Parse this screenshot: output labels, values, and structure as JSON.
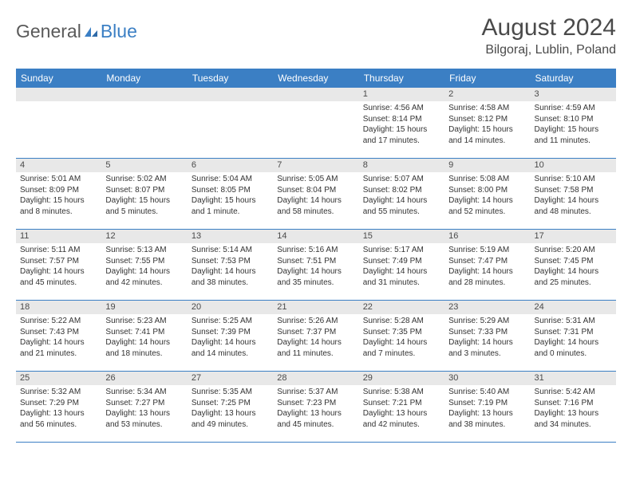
{
  "brand": {
    "word1": "General",
    "word2": "Blue",
    "logo_color": "#3b7fc4"
  },
  "title": "August 2024",
  "location": "Bilgoraj, Lublin, Poland",
  "colors": {
    "header_bg": "#3b7fc4",
    "header_text": "#ffffff",
    "daynum_bg": "#e8e8e8",
    "row_border": "#3b7fc4",
    "text": "#333333"
  },
  "weekdays": [
    "Sunday",
    "Monday",
    "Tuesday",
    "Wednesday",
    "Thursday",
    "Friday",
    "Saturday"
  ],
  "weeks": [
    [
      {
        "n": "",
        "sunrise": "",
        "sunset": "",
        "day": ""
      },
      {
        "n": "",
        "sunrise": "",
        "sunset": "",
        "day": ""
      },
      {
        "n": "",
        "sunrise": "",
        "sunset": "",
        "day": ""
      },
      {
        "n": "",
        "sunrise": "",
        "sunset": "",
        "day": ""
      },
      {
        "n": "1",
        "sunrise": "Sunrise: 4:56 AM",
        "sunset": "Sunset: 8:14 PM",
        "day": "Daylight: 15 hours and 17 minutes."
      },
      {
        "n": "2",
        "sunrise": "Sunrise: 4:58 AM",
        "sunset": "Sunset: 8:12 PM",
        "day": "Daylight: 15 hours and 14 minutes."
      },
      {
        "n": "3",
        "sunrise": "Sunrise: 4:59 AM",
        "sunset": "Sunset: 8:10 PM",
        "day": "Daylight: 15 hours and 11 minutes."
      }
    ],
    [
      {
        "n": "4",
        "sunrise": "Sunrise: 5:01 AM",
        "sunset": "Sunset: 8:09 PM",
        "day": "Daylight: 15 hours and 8 minutes."
      },
      {
        "n": "5",
        "sunrise": "Sunrise: 5:02 AM",
        "sunset": "Sunset: 8:07 PM",
        "day": "Daylight: 15 hours and 5 minutes."
      },
      {
        "n": "6",
        "sunrise": "Sunrise: 5:04 AM",
        "sunset": "Sunset: 8:05 PM",
        "day": "Daylight: 15 hours and 1 minute."
      },
      {
        "n": "7",
        "sunrise": "Sunrise: 5:05 AM",
        "sunset": "Sunset: 8:04 PM",
        "day": "Daylight: 14 hours and 58 minutes."
      },
      {
        "n": "8",
        "sunrise": "Sunrise: 5:07 AM",
        "sunset": "Sunset: 8:02 PM",
        "day": "Daylight: 14 hours and 55 minutes."
      },
      {
        "n": "9",
        "sunrise": "Sunrise: 5:08 AM",
        "sunset": "Sunset: 8:00 PM",
        "day": "Daylight: 14 hours and 52 minutes."
      },
      {
        "n": "10",
        "sunrise": "Sunrise: 5:10 AM",
        "sunset": "Sunset: 7:58 PM",
        "day": "Daylight: 14 hours and 48 minutes."
      }
    ],
    [
      {
        "n": "11",
        "sunrise": "Sunrise: 5:11 AM",
        "sunset": "Sunset: 7:57 PM",
        "day": "Daylight: 14 hours and 45 minutes."
      },
      {
        "n": "12",
        "sunrise": "Sunrise: 5:13 AM",
        "sunset": "Sunset: 7:55 PM",
        "day": "Daylight: 14 hours and 42 minutes."
      },
      {
        "n": "13",
        "sunrise": "Sunrise: 5:14 AM",
        "sunset": "Sunset: 7:53 PM",
        "day": "Daylight: 14 hours and 38 minutes."
      },
      {
        "n": "14",
        "sunrise": "Sunrise: 5:16 AM",
        "sunset": "Sunset: 7:51 PM",
        "day": "Daylight: 14 hours and 35 minutes."
      },
      {
        "n": "15",
        "sunrise": "Sunrise: 5:17 AM",
        "sunset": "Sunset: 7:49 PM",
        "day": "Daylight: 14 hours and 31 minutes."
      },
      {
        "n": "16",
        "sunrise": "Sunrise: 5:19 AM",
        "sunset": "Sunset: 7:47 PM",
        "day": "Daylight: 14 hours and 28 minutes."
      },
      {
        "n": "17",
        "sunrise": "Sunrise: 5:20 AM",
        "sunset": "Sunset: 7:45 PM",
        "day": "Daylight: 14 hours and 25 minutes."
      }
    ],
    [
      {
        "n": "18",
        "sunrise": "Sunrise: 5:22 AM",
        "sunset": "Sunset: 7:43 PM",
        "day": "Daylight: 14 hours and 21 minutes."
      },
      {
        "n": "19",
        "sunrise": "Sunrise: 5:23 AM",
        "sunset": "Sunset: 7:41 PM",
        "day": "Daylight: 14 hours and 18 minutes."
      },
      {
        "n": "20",
        "sunrise": "Sunrise: 5:25 AM",
        "sunset": "Sunset: 7:39 PM",
        "day": "Daylight: 14 hours and 14 minutes."
      },
      {
        "n": "21",
        "sunrise": "Sunrise: 5:26 AM",
        "sunset": "Sunset: 7:37 PM",
        "day": "Daylight: 14 hours and 11 minutes."
      },
      {
        "n": "22",
        "sunrise": "Sunrise: 5:28 AM",
        "sunset": "Sunset: 7:35 PM",
        "day": "Daylight: 14 hours and 7 minutes."
      },
      {
        "n": "23",
        "sunrise": "Sunrise: 5:29 AM",
        "sunset": "Sunset: 7:33 PM",
        "day": "Daylight: 14 hours and 3 minutes."
      },
      {
        "n": "24",
        "sunrise": "Sunrise: 5:31 AM",
        "sunset": "Sunset: 7:31 PM",
        "day": "Daylight: 14 hours and 0 minutes."
      }
    ],
    [
      {
        "n": "25",
        "sunrise": "Sunrise: 5:32 AM",
        "sunset": "Sunset: 7:29 PM",
        "day": "Daylight: 13 hours and 56 minutes."
      },
      {
        "n": "26",
        "sunrise": "Sunrise: 5:34 AM",
        "sunset": "Sunset: 7:27 PM",
        "day": "Daylight: 13 hours and 53 minutes."
      },
      {
        "n": "27",
        "sunrise": "Sunrise: 5:35 AM",
        "sunset": "Sunset: 7:25 PM",
        "day": "Daylight: 13 hours and 49 minutes."
      },
      {
        "n": "28",
        "sunrise": "Sunrise: 5:37 AM",
        "sunset": "Sunset: 7:23 PM",
        "day": "Daylight: 13 hours and 45 minutes."
      },
      {
        "n": "29",
        "sunrise": "Sunrise: 5:38 AM",
        "sunset": "Sunset: 7:21 PM",
        "day": "Daylight: 13 hours and 42 minutes."
      },
      {
        "n": "30",
        "sunrise": "Sunrise: 5:40 AM",
        "sunset": "Sunset: 7:19 PM",
        "day": "Daylight: 13 hours and 38 minutes."
      },
      {
        "n": "31",
        "sunrise": "Sunrise: 5:42 AM",
        "sunset": "Sunset: 7:16 PM",
        "day": "Daylight: 13 hours and 34 minutes."
      }
    ]
  ]
}
